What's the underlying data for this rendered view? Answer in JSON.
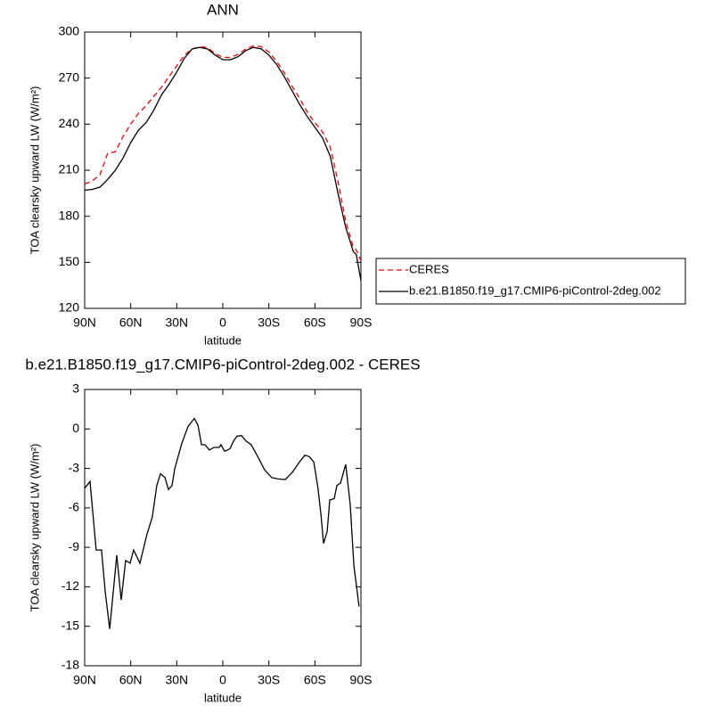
{
  "chart_data": [
    {
      "type": "line",
      "title": "ANN",
      "xlabel": "latitude",
      "ylabel": "TOA clearsky upward LW (W/m²)",
      "x": [
        90,
        85,
        80,
        75,
        70,
        65,
        60,
        55,
        50,
        45,
        40,
        35,
        30,
        25,
        20,
        15,
        10,
        5,
        0,
        -5,
        -10,
        -15,
        -20,
        -25,
        -30,
        -35,
        -40,
        -45,
        -50,
        -55,
        -60,
        -65,
        -70,
        -75,
        -80,
        -85,
        -87,
        -90
      ],
      "series": [
        {
          "name": "CERES",
          "color": "#ff0000",
          "dash": true,
          "values": [
            201,
            203,
            207,
            221,
            222,
            232,
            240,
            247,
            252,
            258,
            264,
            271,
            278,
            285,
            289,
            290.5,
            290,
            286,
            283.5,
            283.5,
            285.5,
            289,
            291,
            290.5,
            287,
            281,
            273.5,
            265,
            257,
            248,
            241,
            235,
            225,
            203,
            177,
            160,
            158,
            151
          ]
        },
        {
          "name": "b.e21.B1850.f19_g17.CMIP6-piControl-2deg.002",
          "color": "#000000",
          "dash": false,
          "values": [
            197,
            197.5,
            199,
            204,
            210,
            218,
            228,
            236,
            241,
            249,
            259,
            266,
            274,
            283,
            289,
            290,
            289,
            285,
            282,
            282,
            284,
            288,
            290,
            289,
            285,
            279,
            271,
            262,
            253,
            245,
            238,
            231,
            219,
            195,
            173,
            157,
            155,
            138
          ]
        }
      ],
      "xlim": [
        90,
        -90
      ],
      "xticks": [
        {
          "value": 90,
          "label": "90N"
        },
        {
          "value": 60,
          "label": "60N"
        },
        {
          "value": 30,
          "label": "30N"
        },
        0,
        {
          "value": -30,
          "label": "30S"
        },
        {
          "value": -60,
          "label": "60S"
        },
        {
          "value": -90,
          "label": "90S"
        }
      ],
      "ylim": [
        120,
        300
      ],
      "yticks": [
        120,
        150,
        180,
        210,
        240,
        270,
        300
      ],
      "legend": "right"
    },
    {
      "type": "line",
      "title": "b.e21.B1850.f19_g17.CMIP6-piControl-2deg.002 - CERES",
      "xlabel": "latitude",
      "ylabel": "TOA clearsky upward LW (W/m²)",
      "x": [
        90,
        86.5,
        82.5,
        79,
        76.6,
        73.7,
        69.1,
        66.2,
        63.3,
        60.4,
        58.1,
        54,
        49.4,
        45.9,
        43,
        40.6,
        37.7,
        35.4,
        33.1,
        31.3,
        26.7,
        22.6,
        18.6,
        16.2,
        13.9,
        11.6,
        8.7,
        5.8,
        2.3,
        1.2,
        -1.2,
        -4.7,
        -7,
        -9.3,
        -12.2,
        -15,
        -18.5,
        -23.2,
        -27.2,
        -31.9,
        -36,
        -40.7,
        -45.3,
        -50,
        -53.4,
        -56.3,
        -59.2,
        -62,
        -63.9,
        -65.6,
        -68,
        -69.7,
        -72.6,
        -74.3,
        -76.7,
        -80.1,
        -83,
        -85.4,
        -88.8
      ],
      "series": [
        {
          "color": "#000000",
          "dash": false,
          "values": [
            -4.5,
            -4.0,
            -9.2,
            -9.2,
            -12.4,
            -15.2,
            -9.6,
            -13.0,
            -10.0,
            -10.2,
            -9.2,
            -10.2,
            -8.0,
            -6.7,
            -4.3,
            -3.4,
            -3.7,
            -4.6,
            -4.3,
            -3.0,
            -1.1,
            0.2,
            0.8,
            0.3,
            -1.2,
            -1.2,
            -1.6,
            -1.4,
            -1.4,
            -1.2,
            -1.7,
            -1.5,
            -0.9,
            -0.55,
            -0.5,
            -0.9,
            -1.2,
            -2.2,
            -3.1,
            -3.7,
            -3.8,
            -3.85,
            -3.3,
            -2.5,
            -2.0,
            -2.1,
            -2.5,
            -4.5,
            -6.5,
            -8.7,
            -7.8,
            -5.4,
            -5.3,
            -4.3,
            -4.1,
            -2.7,
            -5.7,
            -10.4,
            -13.5
          ]
        }
      ],
      "xlim": [
        90,
        -90
      ],
      "xticks": [
        {
          "value": 90,
          "label": "90N"
        },
        {
          "value": 60,
          "label": "60N"
        },
        {
          "value": 30,
          "label": "30N"
        },
        0,
        {
          "value": -30,
          "label": "30S"
        },
        {
          "value": -60,
          "label": "60S"
        },
        {
          "value": -90,
          "label": "90S"
        }
      ],
      "ylim": [
        -18,
        3
      ],
      "yticks": [
        -18,
        -15,
        -12,
        -9,
        -6,
        -3,
        0,
        3
      ]
    }
  ]
}
